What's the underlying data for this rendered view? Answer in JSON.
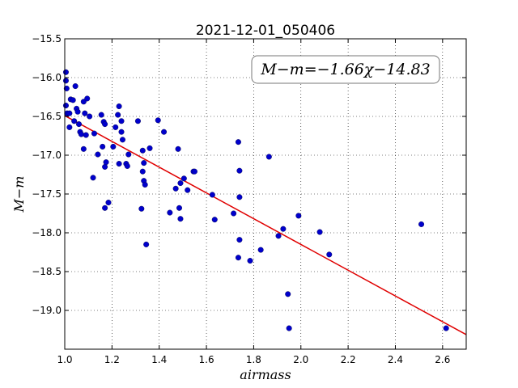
{
  "chart_data": {
    "type": "scatter",
    "title": "2021-12-01_050406",
    "xlabel": "airmass",
    "ylabel": "M−m",
    "xlim": [
      1.0,
      2.7
    ],
    "ylim": [
      -19.5,
      -15.5
    ],
    "y_inverted": true,
    "grid": true,
    "xticks": [
      "1.0",
      "1.2",
      "1.4",
      "1.6",
      "1.8",
      "2.0",
      "2.2",
      "2.4",
      "2.6"
    ],
    "yticks": [
      "−15.5",
      "−16.0",
      "−16.5",
      "−17.0",
      "−17.5",
      "−18.0",
      "−18.5",
      "−19.0"
    ],
    "xtick_values": [
      1.0,
      1.2,
      1.4,
      1.6,
      1.8,
      2.0,
      2.2,
      2.4,
      2.6
    ],
    "ytick_values": [
      -15.5,
      -16.0,
      -16.5,
      -17.0,
      -17.5,
      -18.0,
      -18.5,
      -19.0
    ],
    "annotation": "M−m=−1.66χ−14.83",
    "annotation_position": "top-right",
    "fit": {
      "slope": -1.66,
      "intercept": -14.83,
      "color": "#e00000"
    },
    "point_color": "#0000cc",
    "points": [
      [
        1.005,
        -15.93
      ],
      [
        1.005,
        -16.04
      ],
      [
        1.008,
        -16.14
      ],
      [
        1.005,
        -16.36
      ],
      [
        1.01,
        -16.46
      ],
      [
        1.02,
        -16.46
      ],
      [
        1.025,
        -16.28
      ],
      [
        1.02,
        -16.64
      ],
      [
        1.035,
        -16.29
      ],
      [
        1.04,
        -16.56
      ],
      [
        1.045,
        -16.11
      ],
      [
        1.05,
        -16.4
      ],
      [
        1.055,
        -16.44
      ],
      [
        1.06,
        -16.6
      ],
      [
        1.065,
        -16.7
      ],
      [
        1.07,
        -16.73
      ],
      [
        1.08,
        -16.31
      ],
      [
        1.085,
        -16.46
      ],
      [
        1.08,
        -16.92
      ],
      [
        1.09,
        -16.74
      ],
      [
        1.095,
        -16.27
      ],
      [
        1.105,
        -16.5
      ],
      [
        1.12,
        -17.29
      ],
      [
        1.125,
        -16.72
      ],
      [
        1.14,
        -16.99
      ],
      [
        1.155,
        -16.48
      ],
      [
        1.16,
        -16.89
      ],
      [
        1.165,
        -16.57
      ],
      [
        1.17,
        -16.6
      ],
      [
        1.17,
        -17.15
      ],
      [
        1.175,
        -17.09
      ],
      [
        1.17,
        -17.68
      ],
      [
        1.185,
        -17.61
      ],
      [
        1.205,
        -16.89
      ],
      [
        1.215,
        -16.64
      ],
      [
        1.225,
        -16.48
      ],
      [
        1.23,
        -16.37
      ],
      [
        1.23,
        -17.11
      ],
      [
        1.24,
        -16.56
      ],
      [
        1.24,
        -16.7
      ],
      [
        1.245,
        -16.8
      ],
      [
        1.26,
        -17.11
      ],
      [
        1.265,
        -17.14
      ],
      [
        1.27,
        -16.99
      ],
      [
        1.31,
        -16.56
      ],
      [
        1.325,
        -17.69
      ],
      [
        1.33,
        -16.94
      ],
      [
        1.335,
        -17.1
      ],
      [
        1.33,
        -17.21
      ],
      [
        1.335,
        -17.33
      ],
      [
        1.34,
        -17.38
      ],
      [
        1.345,
        -18.15
      ],
      [
        1.36,
        -16.91
      ],
      [
        1.395,
        -16.55
      ],
      [
        1.42,
        -16.7
      ],
      [
        1.445,
        -17.74
      ],
      [
        1.47,
        -17.43
      ],
      [
        1.48,
        -16.92
      ],
      [
        1.49,
        -17.36
      ],
      [
        1.485,
        -17.68
      ],
      [
        1.49,
        -17.82
      ],
      [
        1.505,
        -17.3
      ],
      [
        1.52,
        -17.45
      ],
      [
        1.545,
        -17.21
      ],
      [
        1.55,
        -17.21
      ],
      [
        1.625,
        -17.51
      ],
      [
        1.635,
        -17.83
      ],
      [
        1.715,
        -17.75
      ],
      [
        1.735,
        -16.83
      ],
      [
        1.74,
        -17.2
      ],
      [
        1.74,
        -17.54
      ],
      [
        1.735,
        -18.32
      ],
      [
        1.74,
        -18.09
      ],
      [
        1.785,
        -18.36
      ],
      [
        1.83,
        -18.22
      ],
      [
        1.865,
        -17.02
      ],
      [
        1.905,
        -18.04
      ],
      [
        1.925,
        -17.95
      ],
      [
        1.945,
        -18.79
      ],
      [
        1.95,
        -19.23
      ],
      [
        1.99,
        -17.78
      ],
      [
        2.08,
        -17.99
      ],
      [
        2.12,
        -18.28
      ],
      [
        2.51,
        -17.89
      ],
      [
        2.615,
        -19.23
      ]
    ]
  }
}
